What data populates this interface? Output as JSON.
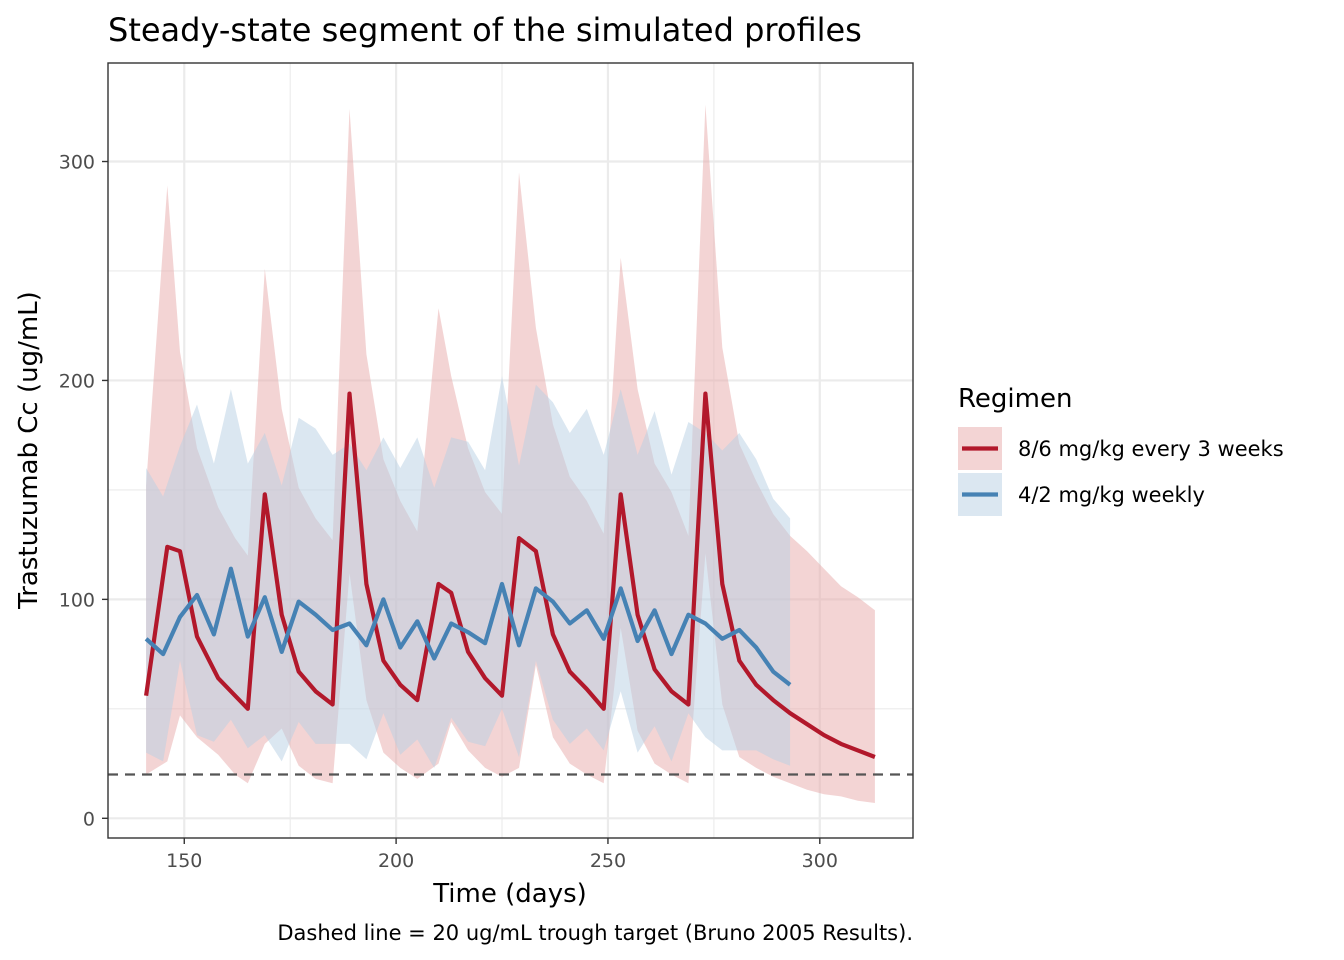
{
  "chart_data": {
    "type": "line",
    "title": "Steady-state segment of the simulated profiles",
    "xlabel": "Time (days)",
    "ylabel": "Trastuzumab Cc (ug/mL)",
    "caption": "Dashed line = 20 ug/mL trough target (Bruno 2005 Results).",
    "xlim": [
      132,
      322
    ],
    "ylim": [
      -9,
      345
    ],
    "x_ticks": [
      150,
      200,
      250,
      300
    ],
    "y_ticks": [
      0,
      100,
      200,
      300
    ],
    "grid": true,
    "legend": {
      "title": "Regimen",
      "placement": "right"
    },
    "reference_line": {
      "y": 20,
      "style": "dashed",
      "color": "#555555"
    },
    "series": [
      {
        "name": "8/6 mg/kg every 3 weeks",
        "color": "#B2182B",
        "ribbon_color": "#E8A9A9",
        "x": [
          141,
          146,
          149,
          153,
          158,
          162,
          165,
          169,
          173,
          177,
          181,
          185,
          189,
          193,
          197,
          201,
          205,
          210,
          213,
          217,
          221,
          225,
          229,
          233,
          237,
          241,
          245,
          249,
          253,
          257,
          261,
          265,
          269,
          273,
          277,
          281,
          285,
          289,
          293,
          297,
          301,
          305,
          309,
          313
        ],
        "y": [
          56,
          124,
          122,
          83,
          64,
          56,
          50,
          148,
          93,
          67,
          58,
          52,
          194,
          107,
          72,
          61,
          54,
          107,
          103,
          76,
          64,
          56,
          128,
          122,
          84,
          67,
          59,
          50,
          148,
          93,
          68,
          58,
          52,
          194,
          107,
          72,
          61,
          54,
          48,
          43,
          38,
          34,
          31,
          28
        ],
        "lower": [
          20,
          26,
          47,
          37,
          29,
          20,
          16,
          34,
          41,
          24,
          18,
          16,
          112,
          54,
          30,
          23,
          18,
          25,
          44,
          31,
          23,
          19,
          23,
          70,
          37,
          25,
          20,
          16,
          87,
          40,
          25,
          20,
          16,
          121,
          52,
          28,
          23,
          19,
          16,
          13,
          11,
          10,
          8,
          7
        ],
        "upper": [
          152,
          289,
          213,
          169,
          142,
          128,
          120,
          251,
          187,
          151,
          137,
          127,
          324,
          212,
          164,
          145,
          131,
          233,
          202,
          169,
          149,
          139,
          295,
          224,
          180,
          156,
          145,
          130,
          256,
          196,
          162,
          149,
          129,
          326,
          215,
          171,
          154,
          139,
          129,
          122,
          114,
          106,
          101,
          95
        ]
      },
      {
        "name": "4/2 mg/kg weekly",
        "color": "#4682B4",
        "ribbon_color": "#B8CFE4",
        "x": [
          141,
          145,
          149,
          153,
          157,
          161,
          165,
          169,
          173,
          177,
          181,
          185,
          189,
          193,
          197,
          201,
          205,
          209,
          213,
          217,
          221,
          225,
          229,
          233,
          237,
          241,
          245,
          249,
          253,
          257,
          261,
          265,
          269,
          273,
          277,
          281,
          285,
          289,
          293
        ],
        "y": [
          82,
          75,
          92,
          102,
          84,
          114,
          83,
          101,
          76,
          99,
          93,
          86,
          89,
          79,
          100,
          78,
          90,
          73,
          89,
          85,
          80,
          107,
          79,
          105,
          99,
          89,
          95,
          82,
          105,
          81,
          95,
          75,
          93,
          89,
          82,
          86,
          78,
          67,
          61
        ],
        "lower": [
          30,
          26,
          72,
          38,
          35,
          45,
          32,
          38,
          26,
          44,
          34,
          34,
          34,
          27,
          48,
          29,
          36,
          23,
          46,
          35,
          33,
          50,
          28,
          72,
          45,
          34,
          41,
          31,
          58,
          30,
          42,
          26,
          48,
          37,
          31,
          31,
          31,
          27,
          24
        ],
        "upper": [
          160,
          147,
          170,
          189,
          162,
          196,
          162,
          176,
          152,
          183,
          178,
          166,
          171,
          159,
          174,
          160,
          174,
          151,
          174,
          172,
          159,
          202,
          161,
          198,
          190,
          176,
          187,
          166,
          196,
          166,
          186,
          157,
          181,
          176,
          168,
          176,
          164,
          146,
          137
        ]
      }
    ]
  }
}
